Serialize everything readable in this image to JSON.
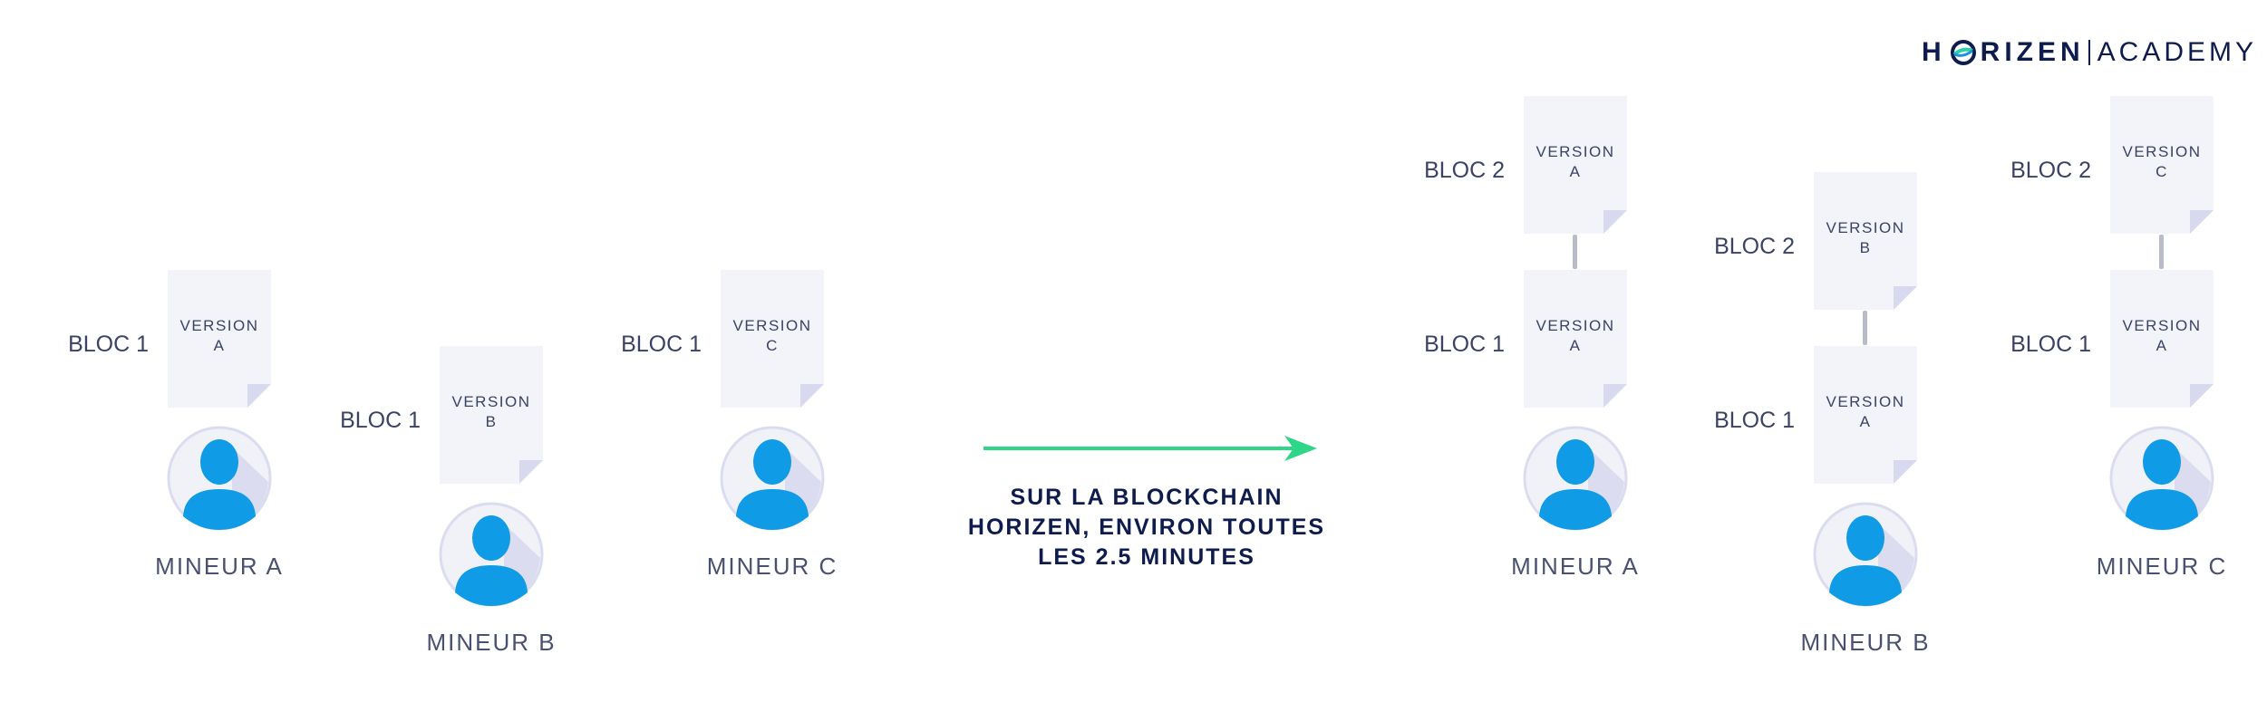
{
  "logo": {
    "left": "H",
    "right": "RIZEN",
    "academy": "ACADEMY"
  },
  "colors": {
    "doc": "#f3f4f9",
    "fold": "#d8d8ee",
    "avatar_bg": "#f1f2f8",
    "avatar_ring": "#dcdcf0",
    "avatar_person": "#0f9be5",
    "arrow": "#2ed687",
    "connector": "#b8bcc9"
  },
  "caption": [
    "SUR LA BLOCKCHAIN",
    "HORIZEN, ENVIRON TOUTES",
    "LES 2.5 MINUTES"
  ],
  "left_side": {
    "miners": [
      {
        "name": "MINEUR A",
        "blocks": [
          {
            "label": "BLOC 1",
            "version": "VERSION",
            "letter": "A"
          }
        ]
      },
      {
        "name": "MINEUR B",
        "blocks": [
          {
            "label": "BLOC 1",
            "version": "VERSION",
            "letter": "B"
          }
        ]
      },
      {
        "name": "MINEUR C",
        "blocks": [
          {
            "label": "BLOC 1",
            "version": "VERSION",
            "letter": "C"
          }
        ]
      }
    ]
  },
  "right_side": {
    "miners": [
      {
        "name": "MINEUR A",
        "blocks": [
          {
            "label": "BLOC 2",
            "version": "VERSION",
            "letter": "A"
          },
          {
            "label": "BLOC 1",
            "version": "VERSION",
            "letter": "A"
          }
        ]
      },
      {
        "name": "MINEUR B",
        "blocks": [
          {
            "label": "BLOC 2",
            "version": "VERSION",
            "letter": "B"
          },
          {
            "label": "BLOC 1",
            "version": "VERSION",
            "letter": "A"
          }
        ]
      },
      {
        "name": "MINEUR C",
        "blocks": [
          {
            "label": "BLOC 2",
            "version": "VERSION",
            "letter": "C"
          },
          {
            "label": "BLOC 1",
            "version": "VERSION",
            "letter": "A"
          }
        ]
      }
    ]
  }
}
